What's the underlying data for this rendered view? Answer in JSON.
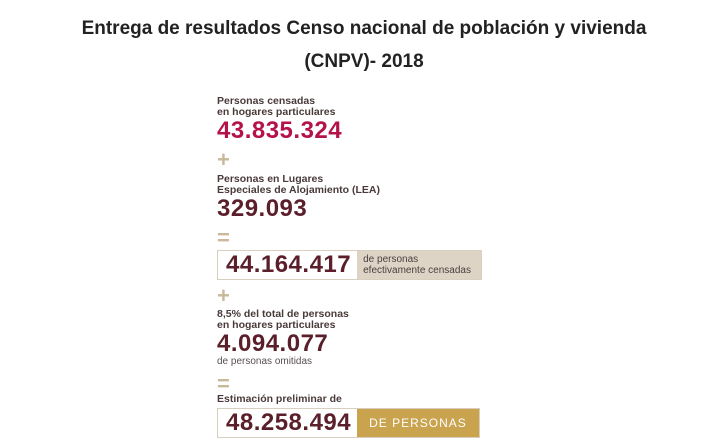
{
  "title_line1": "Entrega de resultados Censo nacional de población y vivienda",
  "title_line2": "(CNPV)- 2018",
  "block1": {
    "label_line1": "Personas censadas",
    "label_line2": "en hogares particulares",
    "value": "43.835.324"
  },
  "op_plus1": "+",
  "block2": {
    "label_line1": "Personas en Lugares",
    "label_line2": "Especiales de Alojamiento (LEA)",
    "value": "329.093"
  },
  "op_equals1": "=",
  "block3": {
    "value": "44.164.417",
    "tag_line1": "de personas",
    "tag_line2": "efectivamente censadas"
  },
  "op_plus2": "+",
  "block4": {
    "label_line1": "8,5% del total de personas",
    "label_line2": "en hogares particulares",
    "value": "4.094.077",
    "note": "de personas omitidas"
  },
  "op_equals2": "=",
  "block5": {
    "label": "Estimación preliminar de",
    "value": "48.258.494",
    "tag": "DE PERSONAS"
  },
  "colors": {
    "highlight_value": "#b5114a",
    "dark_value": "#5a1f2a",
    "operator": "#c9b89a",
    "gold_tag": "#c9a34e",
    "gray_tag": "#ddd4c6"
  }
}
